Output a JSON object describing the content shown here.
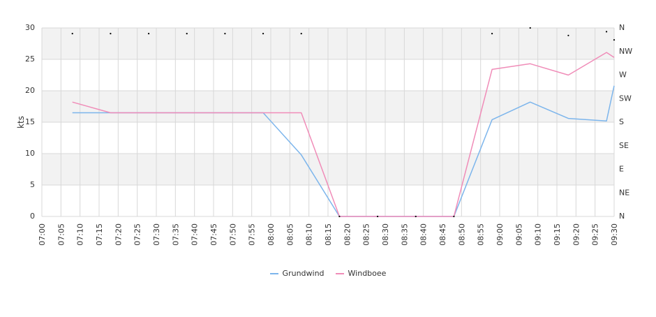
{
  "chart_data": {
    "type": "line",
    "ylabel": "kts",
    "ylim": [
      0,
      30
    ],
    "y_ticks": [
      0,
      5,
      10,
      15,
      20,
      25,
      30
    ],
    "y2_labels": [
      "N",
      "NE",
      "E",
      "SE",
      "S",
      "SW",
      "W",
      "NW",
      "N"
    ],
    "x_tick_labels": [
      "07:00",
      "07:05",
      "07:10",
      "07:15",
      "07:20",
      "07:25",
      "07:30",
      "07:35",
      "07:40",
      "07:45",
      "07:50",
      "07:55",
      "08:00",
      "08:05",
      "08:10",
      "08:15",
      "08:20",
      "08:25",
      "08:30",
      "08:35",
      "08:40",
      "08:45",
      "08:50",
      "08:55",
      "09:00",
      "09:05",
      "09:10",
      "09:15",
      "09:20",
      "09:25",
      "09:30"
    ],
    "x_range_minutes": [
      0,
      150
    ],
    "series": [
      {
        "name": "Grundwind",
        "color": "#7cb5ec",
        "x": [
          8,
          18,
          28,
          38,
          48,
          58,
          68,
          78,
          88,
          98,
          108,
          118,
          128,
          138,
          148,
          150
        ],
        "values": [
          16.5,
          16.5,
          16.5,
          16.5,
          16.5,
          16.5,
          9.8,
          0,
          0,
          0,
          0,
          15.4,
          18.2,
          15.6,
          15.2,
          20.8
        ]
      },
      {
        "name": "Windboee",
        "color": "#f08cb8",
        "x": [
          8,
          18,
          28,
          38,
          48,
          58,
          68,
          78,
          88,
          98,
          108,
          118,
          128,
          138,
          148,
          150
        ],
        "values": [
          18.2,
          16.5,
          16.5,
          16.5,
          16.5,
          16.5,
          16.5,
          0,
          0,
          0,
          0,
          23.4,
          24.3,
          22.5,
          26.1,
          25.3
        ]
      }
    ],
    "direction_markers": {
      "x": [
        8,
        18,
        28,
        38,
        48,
        58,
        68,
        78,
        88,
        98,
        108,
        118,
        128,
        138,
        148,
        150
      ],
      "values": [
        29.1,
        29.1,
        29.1,
        29.1,
        29.1,
        29.1,
        29.1,
        0,
        0,
        0,
        0,
        29.1,
        30,
        28.8,
        29.4,
        28.1
      ]
    },
    "grid": true,
    "legend_position": "bottom-center",
    "band_color": "#f2f2f2",
    "gridline_color": "#d8d8d8"
  }
}
